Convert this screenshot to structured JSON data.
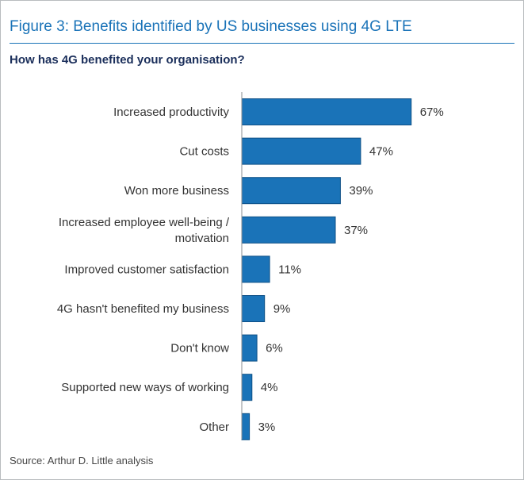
{
  "figure": {
    "title": "Figure 3: Benefits identified by US businesses using 4G LTE",
    "subtitle": "How has 4G benefited your organisation?",
    "source": "Source: Arthur D. Little analysis"
  },
  "chart_data": {
    "type": "bar",
    "orientation": "horizontal",
    "title": "How has 4G benefited your organisation?",
    "categories": [
      "Increased productivity",
      "Cut costs",
      "Won more business",
      "Increased employee well-being / motivation",
      "Improved customer satisfaction",
      "4G hasn't benefited my business",
      "Don't know",
      "Supported new ways of working",
      "Other"
    ],
    "category_lines": [
      [
        "Increased productivity"
      ],
      [
        "Cut costs"
      ],
      [
        "Won more business"
      ],
      [
        "Increased employee well-being /",
        "motivation"
      ],
      [
        "Improved customer satisfaction"
      ],
      [
        "4G hasn't benefited my business"
      ],
      [
        "Don't know"
      ],
      [
        "Supported new ways of working"
      ],
      [
        "Other"
      ]
    ],
    "values": [
      67,
      47,
      39,
      37,
      11,
      9,
      6,
      4,
      3
    ],
    "value_labels": [
      "67%",
      "47%",
      "39%",
      "37%",
      "11%",
      "9%",
      "6%",
      "4%",
      "3%"
    ],
    "xlim": [
      0,
      100
    ],
    "grid": false,
    "legend": "none",
    "xlabel": "",
    "ylabel": "",
    "colors": {
      "bar": "#1a73b8",
      "bar_edge": "#0d4f86",
      "axis": "#8a8d91",
      "text": "#333333"
    }
  }
}
